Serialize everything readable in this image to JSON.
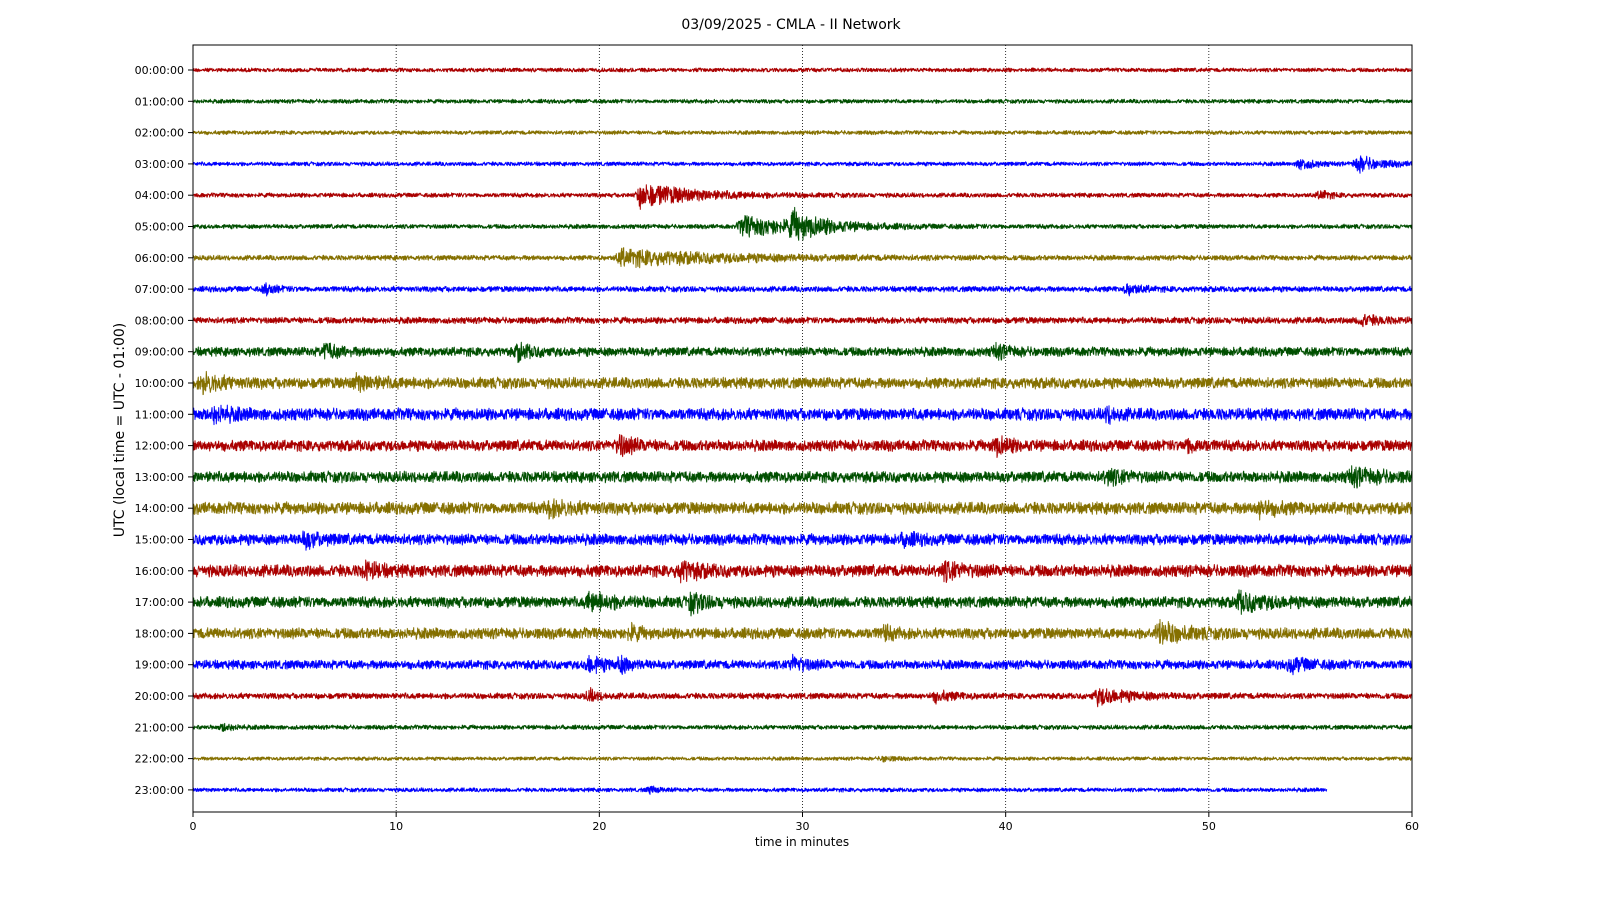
{
  "chart_data": {
    "type": "line",
    "title": "03/09/2025 - CMLA - II Network",
    "xlabel": "time in minutes",
    "ylabel": "UTC (local time = UTC - 01:00)",
    "xlim": [
      0,
      60
    ],
    "xticks": [
      "0",
      "10",
      "20",
      "30",
      "40",
      "50",
      "60"
    ],
    "grid": "vertical dotted lines at each x tick",
    "colors": [
      "#aa0000",
      "#004f00",
      "#857000",
      "#0000ff"
    ],
    "series": [
      {
        "label": "00:00:00",
        "color": "#aa0000",
        "end_minute": 60,
        "noise": 0.2,
        "events": []
      },
      {
        "label": "01:00:00",
        "color": "#004f00",
        "end_minute": 60,
        "noise": 0.2,
        "events": []
      },
      {
        "label": "02:00:00",
        "color": "#857000",
        "end_minute": 60,
        "noise": 0.2,
        "events": []
      },
      {
        "label": "03:00:00",
        "color": "#0000ff",
        "end_minute": 60,
        "noise": 0.2,
        "events": [
          {
            "t": 54.5,
            "amp": 0.6,
            "dur": 1.5
          },
          {
            "t": 57.3,
            "amp": 0.8,
            "dur": 2.5
          }
        ]
      },
      {
        "label": "04:00:00",
        "color": "#aa0000",
        "end_minute": 60,
        "noise": 0.22,
        "events": [
          {
            "t": 22.0,
            "amp": 1.2,
            "dur": 6.0
          },
          {
            "t": 55.5,
            "amp": 0.5,
            "dur": 1.0
          }
        ]
      },
      {
        "label": "05:00:00",
        "color": "#004f00",
        "end_minute": 60,
        "noise": 0.22,
        "events": [
          {
            "t": 27.0,
            "amp": 1.0,
            "dur": 7.0
          },
          {
            "t": 29.5,
            "amp": 1.2,
            "dur": 3.0
          }
        ]
      },
      {
        "label": "06:00:00",
        "color": "#857000",
        "end_minute": 60,
        "noise": 0.25,
        "events": [
          {
            "t": 21.0,
            "amp": 0.8,
            "dur": 12.0
          }
        ]
      },
      {
        "label": "07:00:00",
        "color": "#0000ff",
        "end_minute": 60,
        "noise": 0.28,
        "events": [
          {
            "t": 3.6,
            "amp": 0.5,
            "dur": 1.0
          },
          {
            "t": 46.0,
            "amp": 0.5,
            "dur": 1.5
          }
        ]
      },
      {
        "label": "08:00:00",
        "color": "#aa0000",
        "end_minute": 60,
        "noise": 0.32,
        "events": [
          {
            "t": 57.5,
            "amp": 0.5,
            "dur": 2.0
          }
        ]
      },
      {
        "label": "09:00:00",
        "color": "#004f00",
        "end_minute": 60,
        "noise": 0.45,
        "events": [
          {
            "t": 6.5,
            "amp": 0.7,
            "dur": 1.5
          },
          {
            "t": 16.0,
            "amp": 0.7,
            "dur": 1.5
          },
          {
            "t": 39.5,
            "amp": 0.6,
            "dur": 1.5
          }
        ]
      },
      {
        "label": "10:00:00",
        "color": "#857000",
        "end_minute": 60,
        "noise": 0.55,
        "events": [
          {
            "t": 0.5,
            "amp": 0.8,
            "dur": 2.0
          },
          {
            "t": 8.0,
            "amp": 0.6,
            "dur": 2.5
          }
        ]
      },
      {
        "label": "11:00:00",
        "color": "#0000ff",
        "end_minute": 60,
        "noise": 0.6,
        "events": [
          {
            "t": 1.0,
            "amp": 0.6,
            "dur": 2.0
          },
          {
            "t": 45.0,
            "amp": 0.6,
            "dur": 1.0
          }
        ]
      },
      {
        "label": "12:00:00",
        "color": "#aa0000",
        "end_minute": 60,
        "noise": 0.55,
        "events": [
          {
            "t": 21.0,
            "amp": 0.9,
            "dur": 1.5
          },
          {
            "t": 39.5,
            "amp": 0.8,
            "dur": 1.5
          },
          {
            "t": 49.0,
            "amp": 0.6,
            "dur": 1.0
          }
        ]
      },
      {
        "label": "13:00:00",
        "color": "#004f00",
        "end_minute": 60,
        "noise": 0.55,
        "events": [
          {
            "t": 45.0,
            "amp": 0.6,
            "dur": 2.0
          },
          {
            "t": 57.0,
            "amp": 0.7,
            "dur": 3.0
          }
        ]
      },
      {
        "label": "14:00:00",
        "color": "#857000",
        "end_minute": 60,
        "noise": 0.6,
        "events": [
          {
            "t": 17.5,
            "amp": 0.6,
            "dur": 2.5
          },
          {
            "t": 52.5,
            "amp": 0.6,
            "dur": 2.0
          }
        ]
      },
      {
        "label": "15:00:00",
        "color": "#0000ff",
        "end_minute": 60,
        "noise": 0.55,
        "events": [
          {
            "t": 5.5,
            "amp": 0.7,
            "dur": 1.5
          },
          {
            "t": 35.0,
            "amp": 0.5,
            "dur": 1.5
          }
        ]
      },
      {
        "label": "16:00:00",
        "color": "#aa0000",
        "end_minute": 60,
        "noise": 0.6,
        "events": [
          {
            "t": 8.5,
            "amp": 0.7,
            "dur": 1.5
          },
          {
            "t": 24.0,
            "amp": 0.8,
            "dur": 2.0
          },
          {
            "t": 37.0,
            "amp": 0.7,
            "dur": 2.0
          }
        ]
      },
      {
        "label": "17:00:00",
        "color": "#004f00",
        "end_minute": 60,
        "noise": 0.55,
        "events": [
          {
            "t": 19.5,
            "amp": 0.8,
            "dur": 2.5
          },
          {
            "t": 24.5,
            "amp": 0.8,
            "dur": 1.5
          },
          {
            "t": 51.5,
            "amp": 0.8,
            "dur": 3.0
          }
        ]
      },
      {
        "label": "18:00:00",
        "color": "#857000",
        "end_minute": 60,
        "noise": 0.55,
        "events": [
          {
            "t": 21.5,
            "amp": 0.7,
            "dur": 1.0
          },
          {
            "t": 34.0,
            "amp": 0.6,
            "dur": 1.0
          },
          {
            "t": 47.5,
            "amp": 1.0,
            "dur": 2.5
          }
        ]
      },
      {
        "label": "19:00:00",
        "color": "#0000ff",
        "end_minute": 60,
        "noise": 0.45,
        "events": [
          {
            "t": 19.5,
            "amp": 0.8,
            "dur": 1.5
          },
          {
            "t": 21.0,
            "amp": 0.7,
            "dur": 1.0
          },
          {
            "t": 29.5,
            "amp": 0.7,
            "dur": 1.5
          },
          {
            "t": 54.0,
            "amp": 0.6,
            "dur": 2.0
          }
        ]
      },
      {
        "label": "20:00:00",
        "color": "#aa0000",
        "end_minute": 60,
        "noise": 0.3,
        "events": [
          {
            "t": 19.5,
            "amp": 0.6,
            "dur": 1.0
          },
          {
            "t": 36.5,
            "amp": 0.5,
            "dur": 2.0
          },
          {
            "t": 44.5,
            "amp": 0.8,
            "dur": 3.5
          }
        ]
      },
      {
        "label": "21:00:00",
        "color": "#004f00",
        "end_minute": 60,
        "noise": 0.22,
        "events": [
          {
            "t": 1.5,
            "amp": 0.4,
            "dur": 1.0
          }
        ]
      },
      {
        "label": "22:00:00",
        "color": "#857000",
        "end_minute": 60,
        "noise": 0.18,
        "events": [
          {
            "t": 34.0,
            "amp": 0.3,
            "dur": 1.0
          }
        ]
      },
      {
        "label": "23:00:00",
        "color": "#0000ff",
        "end_minute": 55.8,
        "noise": 0.2,
        "events": [
          {
            "t": 22.5,
            "amp": 0.3,
            "dur": 1.0
          }
        ]
      }
    ]
  }
}
